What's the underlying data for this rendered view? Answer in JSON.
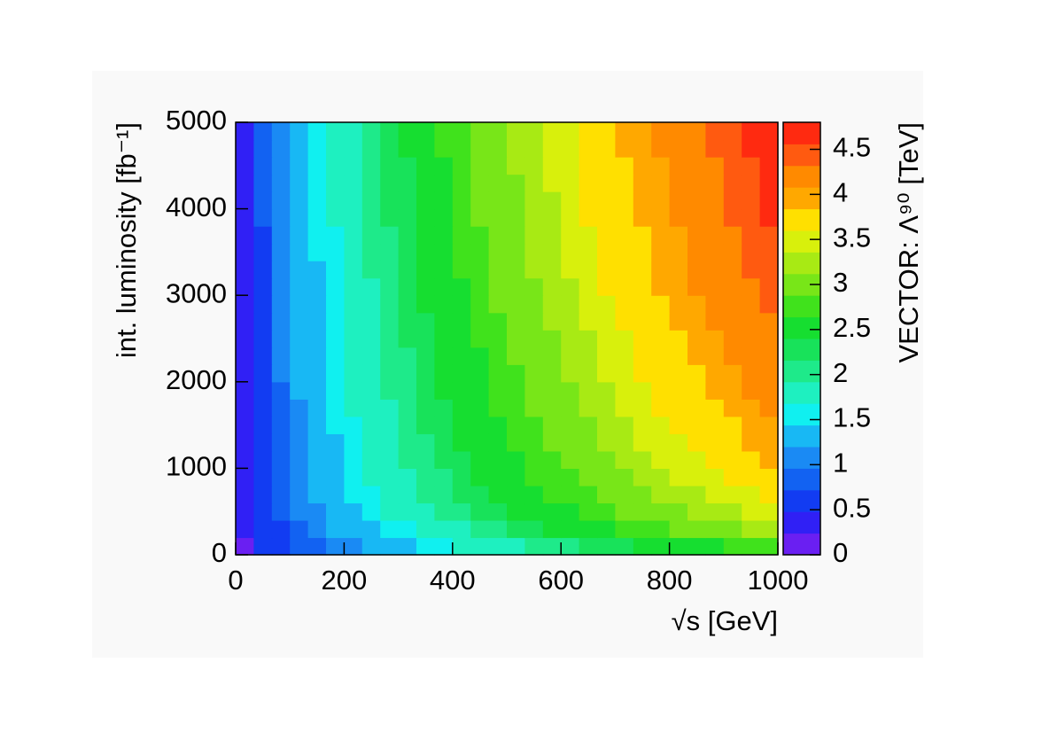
{
  "chart_data": {
    "type": "heatmap",
    "xlabel": "√s [GeV]",
    "ylabel": "int. luminosity [fb⁻¹]",
    "zlabel": "VECTOR: Λ⁹⁰ [TeV]",
    "xlim": [
      0,
      1000
    ],
    "ylim": [
      0,
      5000
    ],
    "xticks": [
      0,
      200,
      400,
      600,
      800,
      1000
    ],
    "yticks": [
      0,
      1000,
      2000,
      3000,
      4000,
      5000
    ],
    "zlim": [
      0,
      4.8
    ],
    "zticks": [
      0,
      0.5,
      1,
      1.5,
      2,
      2.5,
      3,
      3.5,
      4,
      4.5
    ],
    "colors": [
      "#6a1ff2",
      "#3020f5",
      "#123cf2",
      "#1262f2",
      "#1a8af4",
      "#18b8f4",
      "#10f0f0",
      "#1ef0c0",
      "#1eea8a",
      "#18e25a",
      "#16de30",
      "#40e21c",
      "#78e618",
      "#a8ea14",
      "#d8f00c",
      "#ffe000",
      "#ffa800",
      "#ff8a00",
      "#ff5a10",
      "#ff2a10"
    ],
    "z": [
      [
        0.2,
        0.5,
        0.6,
        0.8,
        0.9,
        1.0,
        1.1,
        1.2,
        1.3,
        1.4,
        1.5,
        1.6,
        1.7,
        1.8,
        1.8,
        1.9,
        2.0,
        2.1,
        2.1,
        2.2,
        2.3,
        2.3,
        2.4,
        2.5,
        2.5,
        2.6,
        2.6,
        2.7,
        2.8,
        2.8
      ],
      [
        0.3,
        0.5,
        0.7,
        0.9,
        1.0,
        1.2,
        1.3,
        1.4,
        1.5,
        1.6,
        1.7,
        1.8,
        1.9,
        2.0,
        2.1,
        2.2,
        2.3,
        2.4,
        2.4,
        2.5,
        2.6,
        2.7,
        2.8,
        2.8,
        2.9,
        3.0,
        3.0,
        3.1,
        3.2,
        3.2
      ],
      [
        0.3,
        0.6,
        0.8,
        1.0,
        1.1,
        1.3,
        1.4,
        1.5,
        1.7,
        1.8,
        1.9,
        2.0,
        2.1,
        2.2,
        2.3,
        2.4,
        2.5,
        2.6,
        2.6,
        2.7,
        2.8,
        2.9,
        3.0,
        3.0,
        3.1,
        3.2,
        3.3,
        3.3,
        3.4,
        3.5
      ],
      [
        0.3,
        0.6,
        0.8,
        1.0,
        1.2,
        1.3,
        1.5,
        1.6,
        1.7,
        1.8,
        2.0,
        2.1,
        2.2,
        2.3,
        2.4,
        2.5,
        2.6,
        2.7,
        2.7,
        2.8,
        2.9,
        3.0,
        3.1,
        3.2,
        3.2,
        3.3,
        3.4,
        3.5,
        3.5,
        3.6
      ],
      [
        0.3,
        0.6,
        0.9,
        1.1,
        1.2,
        1.4,
        1.5,
        1.7,
        1.8,
        1.9,
        2.0,
        2.1,
        2.3,
        2.4,
        2.5,
        2.6,
        2.7,
        2.8,
        2.8,
        2.9,
        3.0,
        3.1,
        3.2,
        3.3,
        3.4,
        3.5,
        3.5,
        3.6,
        3.7,
        3.8
      ],
      [
        0.3,
        0.6,
        0.9,
        1.1,
        1.3,
        1.4,
        1.6,
        1.7,
        1.8,
        2.0,
        2.1,
        2.2,
        2.3,
        2.4,
        2.5,
        2.6,
        2.7,
        2.8,
        2.9,
        3.0,
        3.1,
        3.2,
        3.3,
        3.4,
        3.4,
        3.5,
        3.6,
        3.7,
        3.8,
        3.9
      ],
      [
        0.3,
        0.7,
        0.9,
        1.1,
        1.3,
        1.4,
        1.6,
        1.7,
        1.9,
        2.0,
        2.1,
        2.2,
        2.4,
        2.5,
        2.6,
        2.7,
        2.8,
        2.9,
        3.0,
        3.1,
        3.2,
        3.3,
        3.4,
        3.4,
        3.5,
        3.6,
        3.7,
        3.8,
        3.9,
        3.9
      ],
      [
        0.4,
        0.7,
        0.9,
        1.1,
        1.3,
        1.5,
        1.6,
        1.8,
        1.9,
        2.0,
        2.2,
        2.3,
        2.4,
        2.5,
        2.6,
        2.7,
        2.8,
        2.9,
        3.0,
        3.1,
        3.2,
        3.3,
        3.4,
        3.5,
        3.6,
        3.7,
        3.7,
        3.8,
        3.9,
        4.0
      ],
      [
        0.4,
        0.7,
        0.9,
        1.1,
        1.3,
        1.5,
        1.7,
        1.8,
        1.9,
        2.1,
        2.2,
        2.3,
        2.4,
        2.6,
        2.7,
        2.8,
        2.9,
        3.0,
        3.1,
        3.2,
        3.3,
        3.4,
        3.5,
        3.6,
        3.7,
        3.7,
        3.8,
        3.9,
        4.0,
        4.1
      ],
      [
        0.4,
        0.7,
        0.9,
        1.2,
        1.3,
        1.5,
        1.7,
        1.8,
        2.0,
        2.1,
        2.2,
        2.4,
        2.5,
        2.6,
        2.7,
        2.8,
        2.9,
        3.0,
        3.1,
        3.2,
        3.3,
        3.4,
        3.5,
        3.6,
        3.7,
        3.8,
        3.9,
        4.0,
        4.1,
        4.1
      ],
      [
        0.4,
        0.7,
        1.0,
        1.2,
        1.4,
        1.5,
        1.7,
        1.8,
        2.0,
        2.1,
        2.3,
        2.4,
        2.5,
        2.6,
        2.7,
        2.8,
        3.0,
        3.1,
        3.2,
        3.3,
        3.4,
        3.5,
        3.6,
        3.6,
        3.7,
        3.8,
        3.9,
        4.0,
        4.1,
        4.2
      ],
      [
        0.4,
        0.7,
        1.0,
        1.2,
        1.4,
        1.5,
        1.7,
        1.9,
        2.0,
        2.1,
        2.3,
        2.4,
        2.5,
        2.6,
        2.8,
        2.9,
        3.0,
        3.1,
        3.2,
        3.3,
        3.4,
        3.5,
        3.6,
        3.7,
        3.8,
        3.9,
        4.0,
        4.1,
        4.1,
        4.2
      ],
      [
        0.4,
        0.7,
        1.0,
        1.2,
        1.4,
        1.6,
        1.7,
        1.9,
        2.0,
        2.2,
        2.3,
        2.4,
        2.6,
        2.7,
        2.8,
        2.9,
        3.0,
        3.1,
        3.2,
        3.3,
        3.4,
        3.5,
        3.6,
        3.7,
        3.8,
        3.9,
        4.0,
        4.1,
        4.2,
        4.3
      ],
      [
        0.4,
        0.7,
        1.0,
        1.2,
        1.4,
        1.6,
        1.7,
        1.9,
        2.1,
        2.2,
        2.3,
        2.5,
        2.6,
        2.7,
        2.8,
        2.9,
        3.1,
        3.2,
        3.3,
        3.4,
        3.5,
        3.6,
        3.7,
        3.8,
        3.9,
        4.0,
        4.1,
        4.1,
        4.2,
        4.3
      ],
      [
        0.4,
        0.7,
        1.0,
        1.2,
        1.4,
        1.6,
        1.8,
        1.9,
        2.1,
        2.2,
        2.4,
        2.5,
        2.6,
        2.7,
        2.9,
        3.0,
        3.1,
        3.2,
        3.3,
        3.4,
        3.5,
        3.6,
        3.7,
        3.8,
        3.9,
        4.0,
        4.1,
        4.2,
        4.3,
        4.4
      ],
      [
        0.4,
        0.7,
        1.0,
        1.2,
        1.4,
        1.6,
        1.8,
        1.9,
        2.1,
        2.2,
        2.4,
        2.5,
        2.6,
        2.8,
        2.9,
        3.0,
        3.1,
        3.2,
        3.3,
        3.4,
        3.6,
        3.7,
        3.8,
        3.9,
        4.0,
        4.1,
        4.1,
        4.2,
        4.3,
        4.4
      ],
      [
        0.4,
        0.7,
        1.0,
        1.2,
        1.4,
        1.6,
        1.8,
        2.0,
        2.1,
        2.3,
        2.4,
        2.5,
        2.7,
        2.8,
        2.9,
        3.0,
        3.2,
        3.3,
        3.4,
        3.5,
        3.6,
        3.7,
        3.8,
        3.9,
        4.0,
        4.1,
        4.2,
        4.3,
        4.4,
        4.5
      ],
      [
        0.4,
        0.7,
        1.0,
        1.3,
        1.5,
        1.6,
        1.8,
        2.0,
        2.1,
        2.3,
        2.4,
        2.6,
        2.7,
        2.8,
        2.9,
        3.1,
        3.2,
        3.3,
        3.4,
        3.5,
        3.6,
        3.7,
        3.8,
        3.9,
        4.0,
        4.1,
        4.2,
        4.3,
        4.4,
        4.5
      ],
      [
        0.4,
        0.7,
        1.0,
        1.3,
        1.5,
        1.6,
        1.8,
        2.0,
        2.1,
        2.3,
        2.4,
        2.6,
        2.7,
        2.8,
        2.9,
        3.1,
        3.2,
        3.3,
        3.4,
        3.5,
        3.6,
        3.7,
        3.8,
        3.9,
        4.0,
        4.1,
        4.2,
        4.3,
        4.4,
        4.5
      ],
      [
        0.4,
        0.8,
        1.0,
        1.3,
        1.5,
        1.7,
        1.8,
        2.0,
        2.2,
        2.3,
        2.5,
        2.6,
        2.7,
        2.9,
        3.0,
        3.1,
        3.2,
        3.3,
        3.4,
        3.6,
        3.7,
        3.8,
        3.9,
        4.0,
        4.1,
        4.2,
        4.3,
        4.4,
        4.5,
        4.6
      ],
      [
        0.4,
        0.8,
        1.0,
        1.3,
        1.5,
        1.7,
        1.8,
        2.0,
        2.2,
        2.3,
        2.5,
        2.6,
        2.7,
        2.9,
        3.0,
        3.1,
        3.2,
        3.3,
        3.4,
        3.6,
        3.7,
        3.8,
        3.9,
        4.0,
        4.1,
        4.2,
        4.3,
        4.4,
        4.5,
        4.6
      ],
      [
        0.4,
        0.8,
        1.0,
        1.3,
        1.5,
        1.7,
        1.9,
        2.0,
        2.2,
        2.3,
        2.5,
        2.6,
        2.8,
        2.9,
        3.0,
        3.1,
        3.3,
        3.4,
        3.5,
        3.6,
        3.7,
        3.8,
        3.9,
        4.0,
        4.1,
        4.2,
        4.3,
        4.4,
        4.5,
        4.6
      ],
      [
        0.4,
        0.8,
        1.1,
        1.3,
        1.5,
        1.7,
        1.9,
        2.0,
        2.2,
        2.3,
        2.5,
        2.6,
        2.8,
        2.9,
        3.0,
        3.2,
        3.3,
        3.4,
        3.5,
        3.6,
        3.7,
        3.8,
        3.9,
        4.0,
        4.1,
        4.2,
        4.3,
        4.4,
        4.5,
        4.6
      ],
      [
        0.4,
        0.8,
        1.1,
        1.3,
        1.5,
        1.7,
        1.9,
        2.1,
        2.2,
        2.4,
        2.5,
        2.7,
        2.8,
        2.9,
        3.0,
        3.2,
        3.3,
        3.4,
        3.5,
        3.6,
        3.8,
        3.9,
        4.0,
        4.1,
        4.2,
        4.3,
        4.4,
        4.5,
        4.6,
        4.7
      ],
      [
        0.4,
        0.8,
        1.1,
        1.3,
        1.5,
        1.7,
        1.9,
        2.1,
        2.2,
        2.4,
        2.5,
        2.7,
        2.8,
        2.9,
        3.1,
        3.2,
        3.3,
        3.4,
        3.5,
        3.7,
        3.8,
        3.9,
        4.0,
        4.1,
        4.2,
        4.3,
        4.4,
        4.5,
        4.6,
        4.7
      ]
    ]
  }
}
